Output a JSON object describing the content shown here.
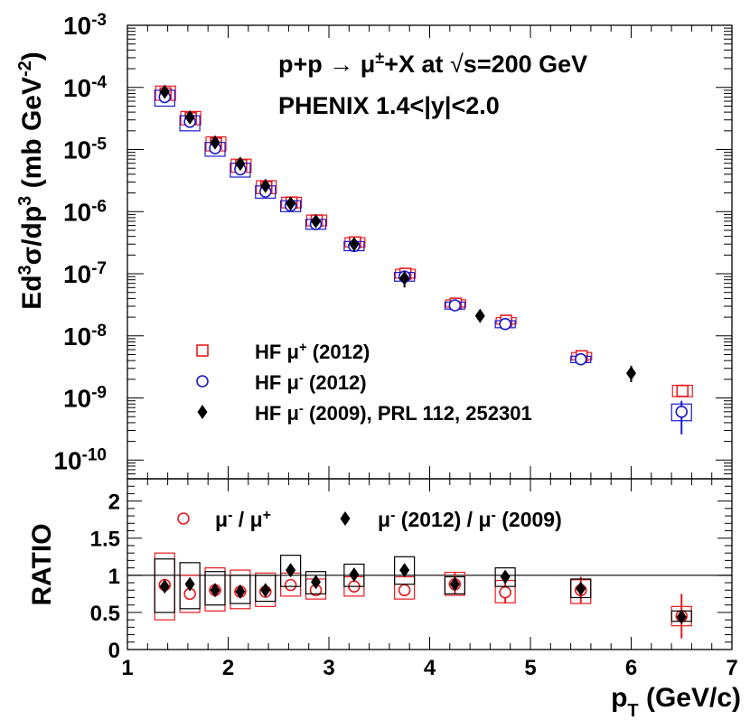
{
  "chart_data": [
    {
      "panel": "top",
      "type": "scatter",
      "annotations": {
        "reaction_prefix": "p+p → μ",
        "reaction_sup": "±",
        "reaction_suffix": "+X at ",
        "sqrt_symbol": "√",
        "energy": "s=200 GeV",
        "experiment": "PHENIX 1.4<|y|<2.0"
      },
      "ylabel": {
        "p1": "Ed",
        "s1": "3",
        "p2": "σ/dp",
        "s2": "3",
        "p3": " (mb GeV",
        "s3": "-2",
        "p4": ")"
      },
      "yscale": "log",
      "ylim": [
        5e-11,
        0.001
      ],
      "xlim": [
        1,
        7
      ],
      "ytick_labels": [
        {
          "exp": -3,
          "base": "10",
          "sup": "-3"
        },
        {
          "exp": -4,
          "base": "10",
          "sup": "-4"
        },
        {
          "exp": -5,
          "base": "10",
          "sup": "-5"
        },
        {
          "exp": -6,
          "base": "10",
          "sup": "-6"
        },
        {
          "exp": -7,
          "base": "10",
          "sup": "-7"
        },
        {
          "exp": -8,
          "base": "10",
          "sup": "-8"
        },
        {
          "exp": -9,
          "base": "10",
          "sup": "-9"
        },
        {
          "exp": -10,
          "base": "10",
          "sup": "-10"
        }
      ],
      "legend": {
        "placement": "bottom-left",
        "entries": [
          {
            "marker": "open-square",
            "color": "#e8191f",
            "prefix": "HF μ",
            "sup": "+",
            "suffix": " (2012)"
          },
          {
            "marker": "open-circle",
            "color": "#1a1acd",
            "prefix": "HF μ",
            "sup": "-",
            "suffix": " (2012)"
          },
          {
            "marker": "filled-diamond",
            "color": "#000000",
            "prefix": "HF μ",
            "sup": "-",
            "suffix": " (2009), PRL 112, 252301"
          }
        ]
      },
      "series": [
        {
          "name": "HF mu+ (2012)",
          "marker": "open-square",
          "color": "#e8191f",
          "dx": 0.02,
          "x": [
            1.37,
            1.62,
            1.87,
            2.12,
            2.37,
            2.62,
            2.87,
            3.25,
            3.75,
            4.25,
            4.75,
            5.5,
            6.5
          ],
          "y": [
            8e-05,
            3.2e-05,
            1.25e-05,
            5.6e-06,
            2.5e-06,
            1.4e-06,
            7.2e-07,
            3.2e-07,
            1e-07,
            3.3e-08,
            1.75e-08,
            4.7e-09,
            1.3e-09
          ],
          "ylo": [
            6.2e-05,
            2.5e-05,
            9.5e-06,
            4.3e-06,
            1.95e-06,
            1.15e-06,
            5.9e-07,
            2.7e-07,
            8.5e-08,
            2.9e-08,
            1.55e-08,
            4.1e-09,
            1.05e-09
          ],
          "yhi": [
            0.000105,
            4.1e-05,
            1.6e-05,
            7e-06,
            3.15e-06,
            1.7e-06,
            8.8e-07,
            3.8e-07,
            1.18e-07,
            3.8e-08,
            1.97e-08,
            5.4e-09,
            1.6e-09
          ],
          "stat_lo": [
            7.6e-05,
            3e-05,
            1.18e-05,
            5.3e-06,
            2.35e-06,
            1.32e-06,
            6.8e-07,
            3e-07,
            9.4e-08,
            3.1e-08,
            1.6e-08,
            4e-09,
            1.05e-09
          ],
          "stat_hi": [
            8.4e-05,
            3.4e-05,
            1.32e-05,
            5.9e-06,
            2.65e-06,
            1.48e-06,
            7.6e-07,
            3.4e-07,
            1.06e-07,
            3.5e-08,
            1.9e-08,
            5.3e-09,
            1.65e-09
          ]
        },
        {
          "name": "HF mu- (2012)",
          "marker": "open-circle",
          "color": "#1a1acd",
          "dx": 0.0,
          "x": [
            1.37,
            1.62,
            1.87,
            2.12,
            2.37,
            2.62,
            2.87,
            3.25,
            3.75,
            4.25,
            4.75,
            5.5,
            6.5
          ],
          "y": [
            7e-05,
            2.8e-05,
            1.05e-05,
            4.8e-06,
            2.1e-06,
            1.25e-06,
            6.3e-07,
            2.8e-07,
            9e-08,
            3.1e-08,
            1.55e-08,
            4.2e-09,
            6e-10
          ],
          "ylo": [
            5e-05,
            2e-05,
            7.8e-06,
            3.6e-06,
            1.65e-06,
            1e-06,
            5.2e-07,
            2.35e-07,
            7.6e-08,
            2.7e-08,
            1.35e-08,
            3.7e-09,
            4.3e-10
          ],
          "yhi": [
            9e-05,
            3.5e-05,
            1.3e-05,
            6e-06,
            2.6e-06,
            1.5e-06,
            7.5e-07,
            3.3e-07,
            1.05e-07,
            3.5e-08,
            1.75e-08,
            4.7e-09,
            8e-10
          ],
          "stat_lo": [
            6.7e-05,
            2.7e-05,
            1e-05,
            4.6e-06,
            2e-06,
            1.2e-06,
            6e-07,
            2.7e-07,
            8.6e-08,
            2.95e-08,
            1.45e-08,
            3.9e-09,
            2.6e-10
          ],
          "stat_hi": [
            7.3e-05,
            2.9e-05,
            1.1e-05,
            5e-06,
            2.2e-06,
            1.3e-06,
            6.6e-07,
            2.9e-07,
            9.4e-08,
            3.25e-08,
            1.65e-08,
            4.5e-09,
            9e-10
          ]
        },
        {
          "name": "HF mu- (2009)",
          "marker": "filled-diamond",
          "color": "#000000",
          "dx": 0.0,
          "x": [
            1.37,
            1.62,
            1.87,
            2.12,
            2.37,
            2.62,
            2.87,
            3.25,
            3.75,
            4.5,
            6.0
          ],
          "y": [
            8.5e-05,
            3.3e-05,
            1.3e-05,
            5.9e-06,
            2.6e-06,
            1.35e-06,
            7e-07,
            3e-07,
            8.5e-08,
            2.1e-08,
            2.5e-09
          ],
          "stat_lo": [
            7.8e-05,
            3e-05,
            1.2e-05,
            5.5e-06,
            2.4e-06,
            1.25e-06,
            6.4e-07,
            2.6e-07,
            6e-08,
            1.8e-08,
            1.8e-09
          ],
          "stat_hi": [
            9.2e-05,
            3.6e-05,
            1.4e-05,
            6.3e-06,
            2.8e-06,
            1.45e-06,
            7.6e-07,
            3.4e-07,
            1.05e-07,
            2.4e-08,
            3.3e-09
          ]
        }
      ]
    },
    {
      "panel": "bottom",
      "type": "scatter",
      "ylabel": "RATIO",
      "xlabel": {
        "main": "p",
        "sub": "T",
        "units": " (GeV/c)"
      },
      "xlim": [
        1,
        7
      ],
      "ylim": [
        0,
        2.3
      ],
      "xticks": [
        "1",
        "2",
        "3",
        "4",
        "5",
        "6",
        "7"
      ],
      "yticks": [
        "0",
        "0.5",
        "1",
        "1.5",
        "2"
      ],
      "reference_line": 1,
      "legend": {
        "placement": "top",
        "entries": [
          {
            "marker": "open-circle",
            "color": "#e8191f",
            "t1": "μ",
            "s1": "-",
            "t2": " / μ",
            "s2": "+",
            "t3": ""
          },
          {
            "marker": "filled-diamond",
            "color": "#000000",
            "t1": "μ",
            "s1": "-",
            "t2": " (2012) / μ",
            "s2": "-",
            "t3": " (2009)"
          }
        ]
      },
      "series": [
        {
          "name": "mu- / mu+",
          "marker": "open-circle",
          "color": "#e8191f",
          "dx": 0.0,
          "x": [
            1.37,
            1.62,
            1.87,
            2.12,
            2.37,
            2.62,
            2.87,
            3.25,
            3.75,
            4.25,
            4.75,
            5.5,
            6.5
          ],
          "y": [
            0.87,
            0.75,
            0.8,
            0.78,
            0.78,
            0.87,
            0.8,
            0.85,
            0.8,
            0.88,
            0.77,
            0.8,
            0.45
          ],
          "ylo": [
            0.4,
            0.5,
            0.52,
            0.55,
            0.58,
            0.72,
            0.68,
            0.72,
            0.68,
            0.73,
            0.63,
            0.62,
            0.32
          ],
          "yhi": [
            1.3,
            1.0,
            1.1,
            1.07,
            1.03,
            1.03,
            0.95,
            0.98,
            0.98,
            1.04,
            0.93,
            0.94,
            0.58
          ],
          "stat_lo": [
            0.83,
            0.71,
            0.76,
            0.74,
            0.74,
            0.82,
            0.76,
            0.8,
            0.72,
            0.75,
            0.62,
            0.62,
            0.15
          ],
          "stat_hi": [
            0.91,
            0.79,
            0.84,
            0.82,
            0.82,
            0.92,
            0.84,
            0.9,
            0.88,
            1.03,
            0.92,
            0.98,
            0.75
          ]
        },
        {
          "name": "mu- (2012) / mu- (2009)",
          "marker": "filled-diamond",
          "color": "#000000",
          "dx": 0.0,
          "x": [
            1.37,
            1.62,
            1.87,
            2.12,
            2.37,
            2.62,
            2.87,
            3.25,
            3.75,
            4.25,
            4.75,
            5.5,
            6.5
          ],
          "y": [
            0.85,
            0.88,
            0.8,
            0.78,
            0.8,
            1.07,
            0.91,
            1.01,
            1.07,
            0.88,
            0.98,
            0.82,
            0.44
          ],
          "ylo": [
            0.5,
            0.55,
            0.6,
            0.62,
            0.65,
            0.85,
            0.75,
            0.85,
            0.88,
            0.75,
            0.85,
            0.7,
            0.38
          ],
          "yhi": [
            1.22,
            1.17,
            1.05,
            1.0,
            1.0,
            1.27,
            1.05,
            1.15,
            1.25,
            0.98,
            1.1,
            0.95,
            0.52
          ],
          "stat_lo": [
            0.81,
            0.84,
            0.76,
            0.74,
            0.76,
            1.02,
            0.87,
            0.96,
            1.0,
            0.83,
            0.9,
            0.75,
            0.38
          ],
          "stat_hi": [
            0.89,
            0.92,
            0.84,
            0.82,
            0.84,
            1.12,
            0.95,
            1.06,
            1.14,
            0.93,
            1.06,
            0.89,
            0.5
          ]
        }
      ]
    }
  ]
}
